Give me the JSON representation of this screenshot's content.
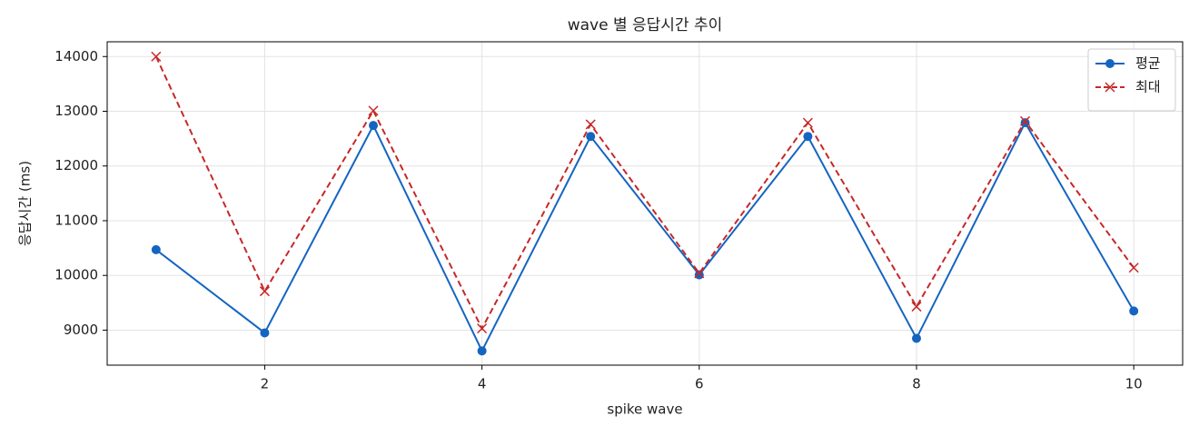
{
  "chart_data": {
    "type": "line",
    "title": "wave 별 응답시간 추이",
    "x_label": "spike wave",
    "y_label": "응답시간 (ms)",
    "x": [
      1,
      2,
      3,
      4,
      5,
      6,
      7,
      8,
      9,
      10
    ],
    "series": [
      {
        "name": "평균",
        "color": "#1565c0",
        "marker": "o",
        "linestyle": "solid",
        "values": [
          10470,
          8950,
          12740,
          8620,
          12540,
          10010,
          12540,
          8850,
          12790,
          9350
        ]
      },
      {
        "name": "최대",
        "color": "#c62828",
        "marker": "x",
        "linestyle": "dashed",
        "values": [
          14000,
          9710,
          13010,
          9030,
          12760,
          10040,
          12790,
          9430,
          12820,
          10140
        ]
      }
    ],
    "xlim": [
      0.55,
      10.45
    ],
    "xticks": [
      2,
      4,
      6,
      8,
      10
    ],
    "ylim": [
      8360,
      14270
    ],
    "yticks": [
      9000,
      10000,
      11000,
      12000,
      13000,
      14000
    ],
    "grid": true,
    "legend": "upper right"
  }
}
